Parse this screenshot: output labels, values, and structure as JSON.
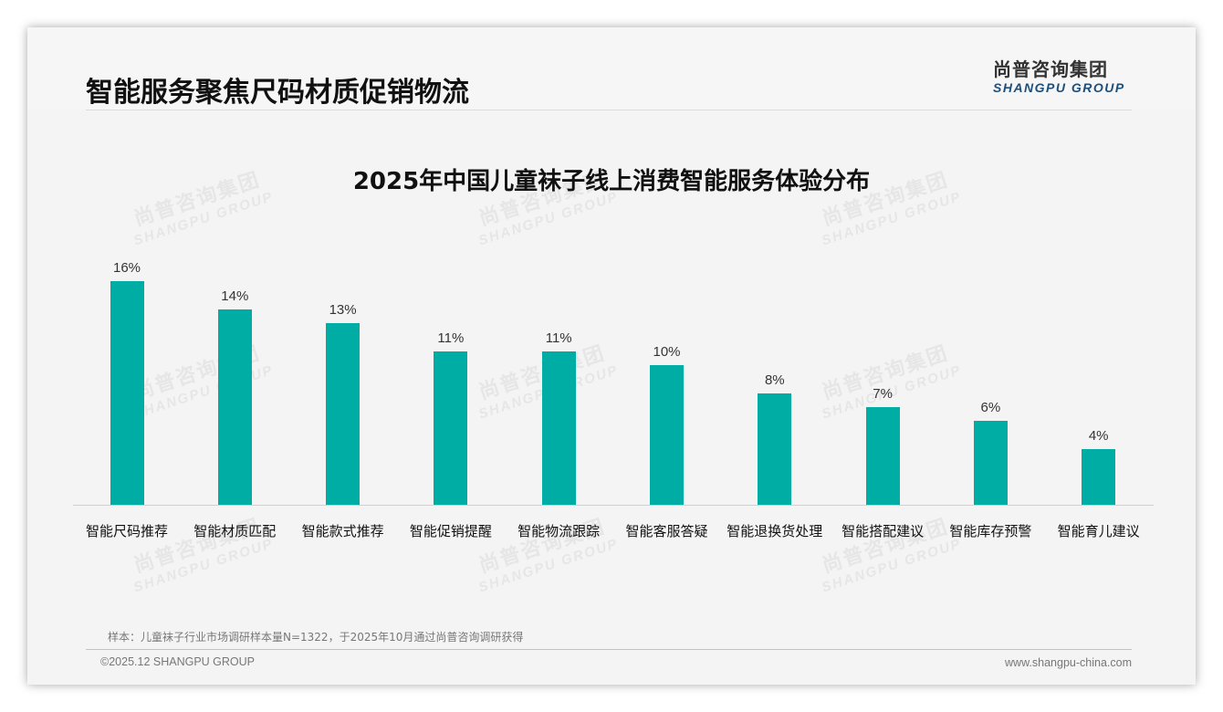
{
  "header": {
    "title": "智能服务聚焦尺码材质促销物流",
    "logo_cn": "尚普咨询集团",
    "logo_en": "SHANGPU GROUP"
  },
  "watermark": {
    "cn": "尚普咨询集团",
    "en": "SHANGPU GROUP"
  },
  "chart_data": {
    "type": "bar",
    "title": "2025年中国儿童袜子线上消费智能服务体验分布",
    "categories": [
      "智能尺码推荐",
      "智能材质匹配",
      "智能款式推荐",
      "智能促销提醒",
      "智能物流跟踪",
      "智能客服答疑",
      "智能退换货处理",
      "智能搭配建议",
      "智能库存预警",
      "智能育儿建议"
    ],
    "values": [
      16,
      14,
      13,
      11,
      11,
      10,
      8,
      7,
      6,
      4
    ],
    "labels": [
      "16%",
      "14%",
      "13%",
      "11%",
      "11%",
      "10%",
      "8%",
      "7%",
      "6%",
      "4%"
    ],
    "unit": "%",
    "xlabel": "",
    "ylabel": "",
    "ylim": [
      0,
      18
    ],
    "grid": false,
    "legend": null,
    "bar_color": "#00ada5"
  },
  "footer": {
    "note": "样本：儿童袜子行业市场调研样本量N=1322，于2025年10月通过尚普咨询调研获得",
    "copyright": "©2025.12 SHANGPU GROUP",
    "website": "www.shangpu-china.com"
  }
}
